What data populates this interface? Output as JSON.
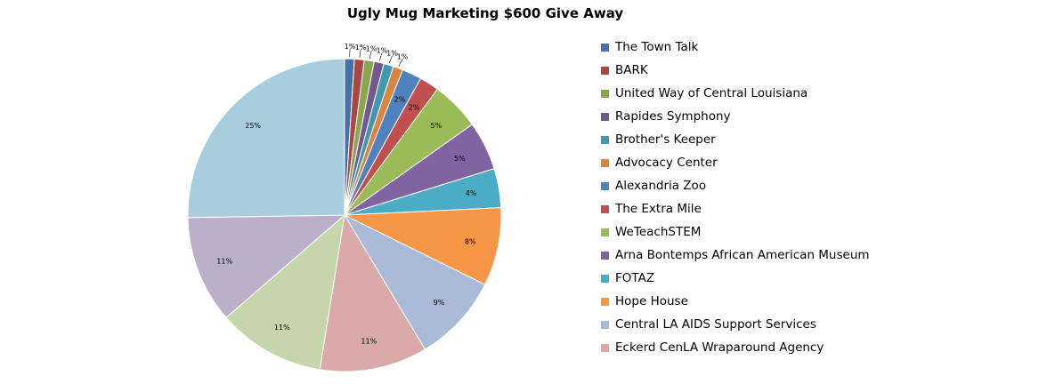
{
  "chart_data": {
    "type": "pie",
    "title": "Ugly Mug Marketing  $600 Give Away",
    "legend_position": "right",
    "series": [
      {
        "name": "The Town Talk",
        "percent": 1,
        "label": "1%",
        "color": "#4672A8"
      },
      {
        "name": "BARK",
        "percent": 1,
        "label": "1%",
        "color": "#AA4643"
      },
      {
        "name": "United Way of Central Louisiana",
        "percent": 1,
        "label": "1%",
        "color": "#89A54E"
      },
      {
        "name": "Rapides Symphony",
        "percent": 1,
        "label": "1%",
        "color": "#71588F"
      },
      {
        "name": "Brother's Keeper",
        "percent": 1,
        "label": "1%",
        "color": "#4198AF"
      },
      {
        "name": "Advocacy Center",
        "percent": 1,
        "label": "1%",
        "color": "#DB843D"
      },
      {
        "name": "Alexandria Zoo",
        "percent": 2,
        "label": "2%",
        "color": "#4F81BD"
      },
      {
        "name": "The Extra Mile",
        "percent": 2,
        "label": "2%",
        "color": "#C0504D"
      },
      {
        "name": "WeTeachSTEM",
        "percent": 5,
        "label": "5%",
        "color": "#9BBB59"
      },
      {
        "name": "Arna Bontemps African American Museum",
        "percent": 5,
        "label": "5%",
        "color": "#8064A2"
      },
      {
        "name": "FOTAZ",
        "percent": 4,
        "label": "4%",
        "color": "#4BACC6"
      },
      {
        "name": "Hope House",
        "percent": 8,
        "label": "8%",
        "color": "#F79646"
      },
      {
        "name": "Central LA AIDS Support Services",
        "percent": 9,
        "label": "9%",
        "color": "#AABAD7"
      },
      {
        "name": "Eckerd CenLA Wraparound Agency",
        "percent": 11,
        "label": "11%",
        "color": "#D9AAA9"
      },
      {
        "percent": 11,
        "label": "11%",
        "color": "#C6D6AC"
      },
      {
        "percent": 11,
        "label": "11%",
        "color": "#BAB0C9"
      },
      {
        "percent": 25,
        "label": "25%",
        "color": "#A8CEDE"
      }
    ]
  }
}
